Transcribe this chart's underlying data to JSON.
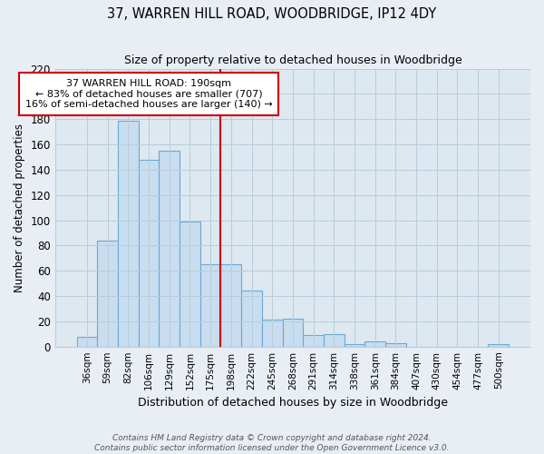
{
  "title": "37, WARREN HILL ROAD, WOODBRIDGE, IP12 4DY",
  "subtitle": "Size of property relative to detached houses in Woodbridge",
  "xlabel": "Distribution of detached houses by size in Woodbridge",
  "ylabel": "Number of detached properties",
  "bar_labels": [
    "36sqm",
    "59sqm",
    "82sqm",
    "106sqm",
    "129sqm",
    "152sqm",
    "175sqm",
    "198sqm",
    "222sqm",
    "245sqm",
    "268sqm",
    "291sqm",
    "314sqm",
    "338sqm",
    "361sqm",
    "384sqm",
    "407sqm",
    "430sqm",
    "454sqm",
    "477sqm",
    "500sqm"
  ],
  "bar_heights": [
    8,
    84,
    179,
    148,
    155,
    99,
    65,
    65,
    44,
    21,
    22,
    9,
    10,
    2,
    4,
    3,
    0,
    0,
    0,
    0,
    2
  ],
  "bar_color": "#c8ddef",
  "bar_edge_color": "#6aaad4",
  "vline_x_idx": 6.5,
  "vline_color": "#cc0000",
  "annotation_line1": "37 WARREN HILL ROAD: 190sqm",
  "annotation_line2": "← 83% of detached houses are smaller (707)",
  "annotation_line3": "16% of semi-detached houses are larger (140) →",
  "annotation_box_color": "#ffffff",
  "annotation_box_edge": "#cc0000",
  "ylim": [
    0,
    220
  ],
  "yticks": [
    0,
    20,
    40,
    60,
    80,
    100,
    120,
    140,
    160,
    180,
    200,
    220
  ],
  "footer1": "Contains HM Land Registry data © Crown copyright and database right 2024.",
  "footer2": "Contains public sector information licensed under the Open Government Licence v3.0.",
  "bg_color": "#e8eef4",
  "plot_bg_color": "#dde8f0",
  "grid_color": "#b8cdd8"
}
